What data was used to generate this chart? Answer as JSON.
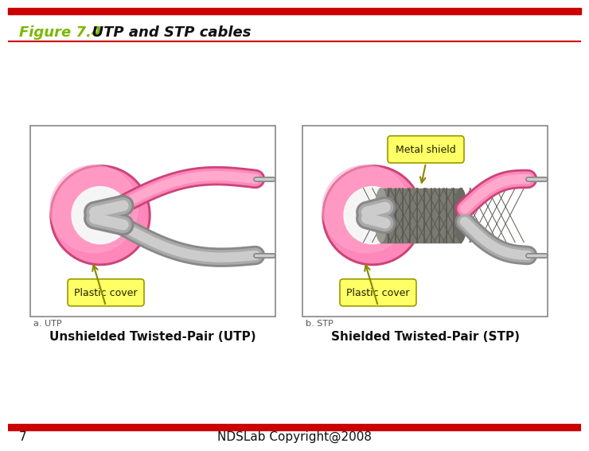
{
  "title": "Figure 7.4",
  "title_italic": "  UTP and STP cables",
  "title_color": "#7ab800",
  "bg_color": "#ffffff",
  "top_bar_color": "#cc0000",
  "bottom_bar_color": "#cc0000",
  "footer_number": "7",
  "footer_text": "NDSLab Copyright@2008",
  "label_utp": "a. UTP",
  "label_stp": "b. STP",
  "caption_utp": "Unshielded Twisted-Pair (UTP)",
  "caption_stp": "Shielded Twisted-Pair (STP)",
  "callout_plastic": "Plastic cover",
  "callout_metal": "Metal shield",
  "callout_color": "#ffff66",
  "pink": "#ff88bb",
  "pink_light": "#ffaaccff",
  "pink_dark": "#cc4477",
  "gray_lt": "#cccccc",
  "gray_md": "#aaaaaa",
  "gray_dk": "#888888"
}
